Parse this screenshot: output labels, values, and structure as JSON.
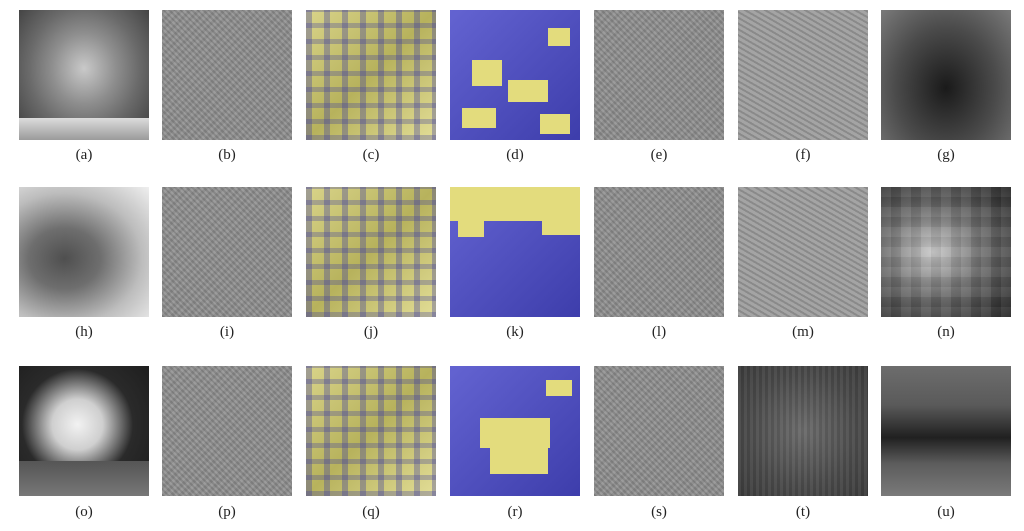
{
  "figure": {
    "description_rows": [
      {
        "row": 1,
        "panels": [
          {
            "label": "(a)",
            "type": "original"
          },
          {
            "label": "(b)",
            "type": "edge"
          },
          {
            "label": "(c)",
            "type": "yellow-overlay"
          },
          {
            "label": "(d)",
            "type": "blue-overlay"
          },
          {
            "label": "(e)",
            "type": "edge"
          },
          {
            "label": "(f)",
            "type": "edge"
          },
          {
            "label": "(g)",
            "type": "dark"
          }
        ]
      },
      {
        "row": 2,
        "panels": [
          {
            "label": "(h)",
            "type": "original"
          },
          {
            "label": "(i)",
            "type": "edge"
          },
          {
            "label": "(j)",
            "type": "yellow-overlay"
          },
          {
            "label": "(k)",
            "type": "blue-overlay"
          },
          {
            "label": "(l)",
            "type": "edge"
          },
          {
            "label": "(m)",
            "type": "edge"
          },
          {
            "label": "(n)",
            "type": "dark"
          }
        ]
      },
      {
        "row": 3,
        "panels": [
          {
            "label": "(o)",
            "type": "original"
          },
          {
            "label": "(p)",
            "type": "edge"
          },
          {
            "label": "(q)",
            "type": "yellow-overlay"
          },
          {
            "label": "(r)",
            "type": "blue-overlay"
          },
          {
            "label": "(s)",
            "type": "edge"
          },
          {
            "label": "(t)",
            "type": "dark"
          },
          {
            "label": "(u)",
            "type": "dark"
          }
        ]
      }
    ]
  }
}
